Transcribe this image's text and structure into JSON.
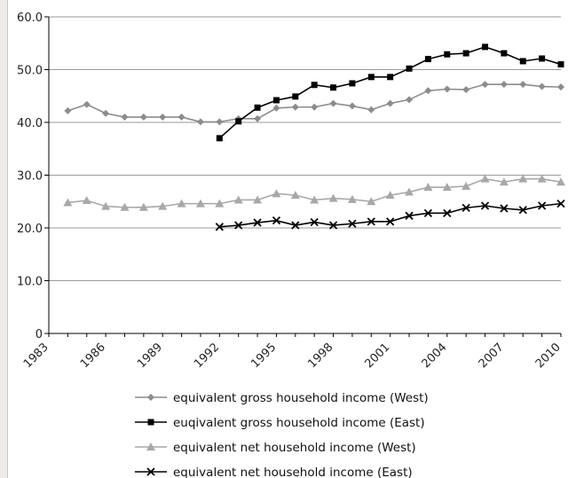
{
  "chart_data": {
    "type": "line",
    "title": "",
    "xlabel": "",
    "ylabel": "",
    "ylim": [
      0,
      60
    ],
    "xlim": [
      1983,
      2010
    ],
    "grid": "horizontal",
    "legend_placement": "bottom",
    "y_ticks": [
      "0",
      "10.0",
      "20.0",
      "30.0",
      "40.0",
      "50.0",
      "60.0"
    ],
    "x_ticks": [
      "1983",
      "1986",
      "1989",
      "1992",
      "1995",
      "1998",
      "2001",
      "2004",
      "2007",
      "2010"
    ],
    "series": [
      {
        "name": "equivalent gross household income (West)",
        "color": "#8c8c8c",
        "marker": "diamond",
        "x": [
          1984,
          1985,
          1986,
          1987,
          1988,
          1989,
          1990,
          1991,
          1992,
          1993,
          1994,
          1995,
          1996,
          1997,
          1998,
          1999,
          2000,
          2001,
          2002,
          2003,
          2004,
          2005,
          2006,
          2007,
          2008,
          2009,
          2010
        ],
        "values": [
          42.2,
          43.4,
          41.7,
          41.0,
          41.0,
          41.0,
          41.0,
          40.1,
          40.1,
          40.7,
          40.7,
          42.7,
          42.9,
          42.9,
          43.6,
          43.1,
          42.4,
          43.6,
          44.3,
          46.0,
          46.3,
          46.2,
          47.2,
          47.2,
          47.2,
          46.8,
          46.7
        ]
      },
      {
        "name": "euqivalent gross household income (East)",
        "color": "#000000",
        "marker": "square",
        "x": [
          1992,
          1993,
          1994,
          1995,
          1996,
          1997,
          1998,
          1999,
          2000,
          2001,
          2002,
          2003,
          2004,
          2005,
          2006,
          2007,
          2008,
          2009,
          2010
        ],
        "values": [
          37.0,
          40.2,
          42.8,
          44.2,
          44.9,
          47.1,
          46.6,
          47.4,
          48.6,
          48.6,
          50.2,
          52.0,
          52.9,
          53.1,
          54.3,
          53.1,
          51.6,
          52.1,
          51.0
        ]
      },
      {
        "name": "equivalent net household income (West)",
        "color": "#a8a8a8",
        "marker": "triangle",
        "x": [
          1984,
          1985,
          1986,
          1987,
          1988,
          1989,
          1990,
          1991,
          1992,
          1993,
          1994,
          1995,
          1996,
          1997,
          1998,
          1999,
          2000,
          2001,
          2002,
          2003,
          2004,
          2005,
          2006,
          2007,
          2008,
          2009,
          2010
        ],
        "values": [
          24.8,
          25.2,
          24.1,
          23.9,
          23.9,
          24.1,
          24.6,
          24.6,
          24.6,
          25.3,
          25.3,
          26.5,
          26.2,
          25.3,
          25.6,
          25.4,
          25.0,
          26.2,
          26.8,
          27.7,
          27.7,
          27.9,
          29.3,
          28.7,
          29.3,
          29.3,
          28.7
        ]
      },
      {
        "name": "equivalent net household income (East)",
        "color": "#000000",
        "marker": "x",
        "x": [
          1992,
          1993,
          1994,
          1995,
          1996,
          1997,
          1998,
          1999,
          2000,
          2001,
          2002,
          2003,
          2004,
          2005,
          2006,
          2007,
          2008,
          2009,
          2010
        ],
        "values": [
          20.2,
          20.5,
          21.0,
          21.4,
          20.5,
          21.1,
          20.5,
          20.8,
          21.2,
          21.2,
          22.3,
          22.8,
          22.8,
          23.8,
          24.2,
          23.7,
          23.4,
          24.2,
          24.6
        ]
      }
    ]
  }
}
